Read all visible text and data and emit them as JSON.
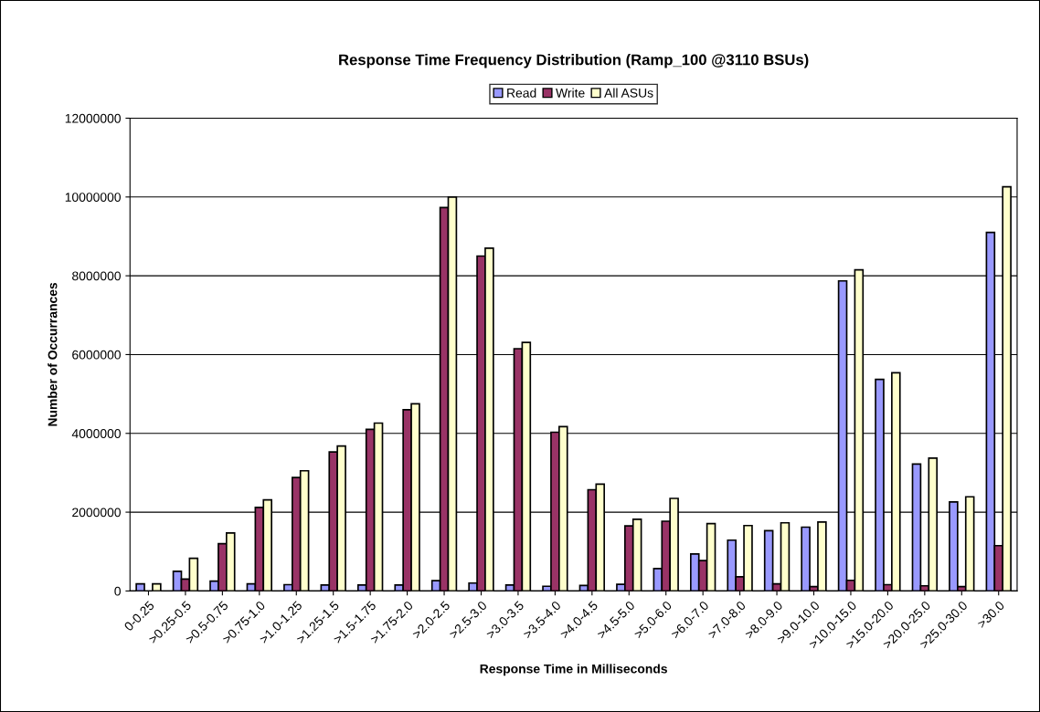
{
  "chart_data": {
    "type": "bar",
    "title": "Response Time Frequency Distribution (Ramp_100 @3110 BSUs)",
    "xlabel": "Response Time in Milliseconds",
    "ylabel": "Number of Occurrances",
    "categories": [
      "0-0.25",
      ">0.25-0.5",
      ">0.5-0.75",
      ">0.75-1.0",
      ">1.0-1.25",
      ">1.25-1.5",
      ">1.5-1.75",
      ">1.75-2.0",
      ">2.0-2.5",
      ">2.5-3.0",
      ">3.0-3.5",
      ">3.5-4.0",
      ">4.0-4.5",
      ">4.5-5.0",
      ">5.0-6.0",
      ">6.0-7.0",
      ">7.0-8.0",
      ">8.0-9.0",
      ">9.0-10.0",
      ">10.0-15.0",
      ">15.0-20.0",
      ">20.0-25.0",
      ">25.0-30.0",
      ">30.0"
    ],
    "series": [
      {
        "name": "Read",
        "color": "#9999ff",
        "values": [
          180000,
          500000,
          250000,
          180000,
          160000,
          150000,
          150000,
          150000,
          260000,
          200000,
          150000,
          120000,
          140000,
          170000,
          570000,
          940000,
          1290000,
          1530000,
          1620000,
          7870000,
          5370000,
          3220000,
          2260000,
          9100000
        ]
      },
      {
        "name": "Write",
        "color": "#993366",
        "values": [
          null,
          300000,
          1200000,
          2120000,
          2880000,
          3530000,
          4100000,
          4600000,
          9730000,
          8500000,
          6150000,
          4030000,
          2570000,
          1650000,
          1770000,
          770000,
          360000,
          180000,
          110000,
          270000,
          160000,
          130000,
          110000,
          1150000
        ]
      },
      {
        "name": "All ASUs",
        "color": "#ffffcc",
        "values": [
          180000,
          830000,
          1470000,
          2310000,
          3050000,
          3680000,
          4260000,
          4750000,
          10000000,
          8700000,
          6310000,
          4170000,
          2710000,
          1820000,
          2350000,
          1710000,
          1660000,
          1730000,
          1750000,
          8150000,
          5540000,
          3370000,
          2390000,
          10260000
        ]
      }
    ],
    "ylim": [
      0,
      12000000
    ],
    "yticks": [
      0,
      2000000,
      4000000,
      6000000,
      8000000,
      10000000,
      12000000
    ],
    "grid": "y",
    "legend": "top"
  }
}
